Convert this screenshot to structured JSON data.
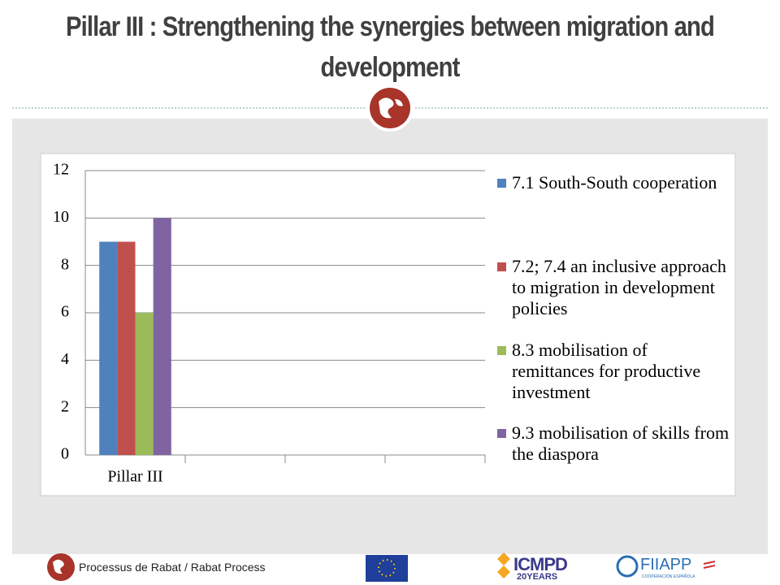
{
  "slide": {
    "title": "Pillar III : Strengthening the synergies between migration and development",
    "footer": {
      "text": "Processus de Rabat / Rabat Process",
      "icmpd": "ICMPD",
      "icmpd_years": "20YEARS",
      "fiiapp": "FIIAPP",
      "fiiapp_sub": "COOPERACIÓN ESPAÑOLA"
    }
  },
  "chart_data": {
    "type": "bar",
    "categories": [
      "Pillar III",
      null,
      null,
      null
    ],
    "series": [
      {
        "name": "7.1 South-South cooperation",
        "color": "#4f81bd",
        "values": [
          9,
          null,
          null,
          null
        ]
      },
      {
        "name": "7.2; 7.4 an inclusive approach to migration in development policies",
        "color": "#c0504d",
        "values": [
          9,
          null,
          null,
          null
        ]
      },
      {
        "name": "8.3 mobilisation of remittances for productive investment",
        "color": "#9bbb59",
        "values": [
          6,
          null,
          null,
          null
        ]
      },
      {
        "name": "9.3 mobilisation of skills from the diaspora",
        "color": "#8064a2",
        "values": [
          10,
          null,
          null,
          null
        ]
      }
    ],
    "ylim": [
      0,
      12
    ],
    "yticks": [
      0,
      2,
      4,
      6,
      8,
      10,
      12
    ],
    "grid": true,
    "legend": "right"
  }
}
